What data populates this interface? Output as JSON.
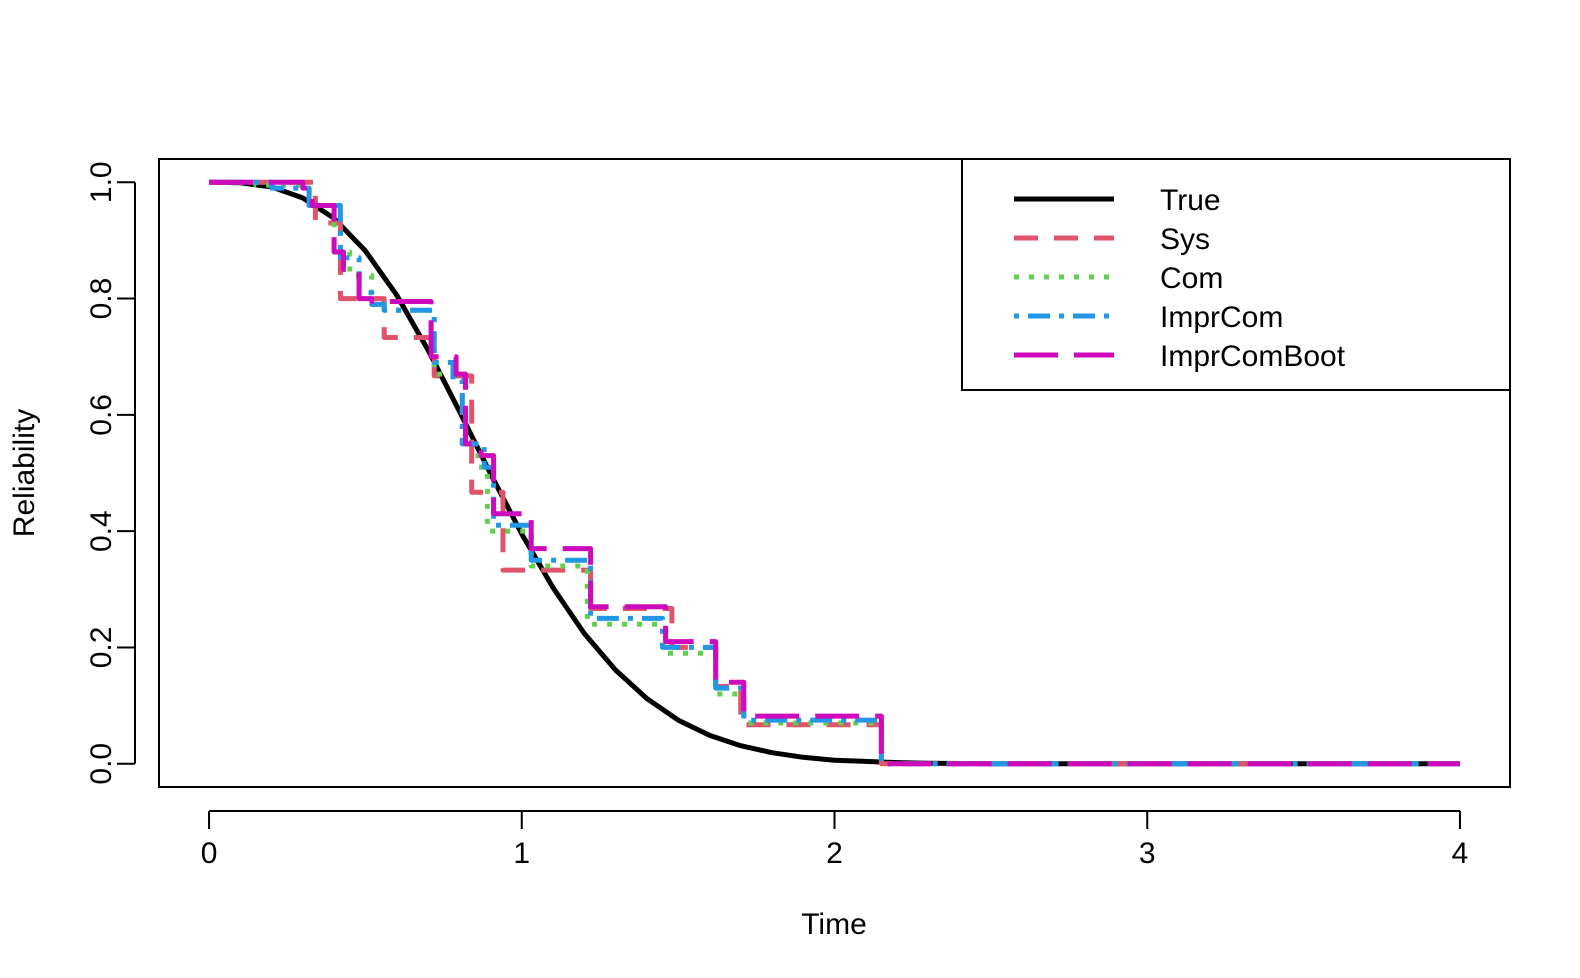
{
  "chart_data": {
    "type": "line",
    "title": "",
    "xlabel": "Time",
    "ylabel": "Reliability",
    "xlim": [
      -0.16,
      4.16
    ],
    "ylim": [
      -0.04,
      1.04
    ],
    "xticks": [
      "0",
      "1",
      "2",
      "3",
      "4"
    ],
    "yticks": [
      "0.0",
      "0.2",
      "0.4",
      "0.6",
      "0.8",
      "1.0"
    ],
    "legend_position": "top-right",
    "series": [
      {
        "name": "True",
        "color": "#000000",
        "style": "solid",
        "kind": "curve",
        "x": [
          0,
          0.1,
          0.2,
          0.3,
          0.4,
          0.5,
          0.6,
          0.7,
          0.8,
          0.9,
          1.0,
          1.1,
          1.2,
          1.3,
          1.4,
          1.5,
          1.6,
          1.7,
          1.8,
          1.9,
          2.0,
          2.1,
          2.2,
          2.3,
          2.5,
          2.8,
          3.0,
          3.5,
          4.0
        ],
        "y": [
          1.0,
          0.999,
          0.992,
          0.973,
          0.938,
          0.882,
          0.806,
          0.712,
          0.607,
          0.499,
          0.395,
          0.303,
          0.224,
          0.161,
          0.112,
          0.075,
          0.049,
          0.031,
          0.019,
          0.011,
          0.006,
          0.004,
          0.002,
          0.001,
          0.0,
          0.0,
          0.0,
          0.0,
          0.0
        ]
      },
      {
        "name": "Sys",
        "color": "#DF536B",
        "style": "dashed",
        "kind": "step",
        "x": [
          0,
          0.32,
          0.34,
          0.4,
          0.42,
          0.52,
          0.56,
          0.68,
          0.72,
          0.8,
          0.84,
          0.9,
          0.94,
          1.06,
          1.1,
          1.18,
          1.22,
          1.44,
          1.48,
          1.58,
          1.62,
          1.66,
          1.7,
          2.12,
          2.15,
          4.0
        ],
        "y": [
          1.0,
          1.0,
          0.93,
          0.93,
          0.8,
          0.8,
          0.733,
          0.733,
          0.667,
          0.667,
          0.467,
          0.467,
          0.333,
          0.333,
          0.333,
          0.333,
          0.267,
          0.267,
          0.2,
          0.2,
          0.133,
          0.133,
          0.067,
          0.067,
          0.0,
          0.0
        ]
      },
      {
        "name": "Com",
        "color": "#61D04F",
        "style": "dotted",
        "kind": "step",
        "x": [
          0,
          0.15,
          0.32,
          0.4,
          0.45,
          0.52,
          0.56,
          0.68,
          0.72,
          0.78,
          0.81,
          0.86,
          0.89,
          1.0,
          1.03,
          1.18,
          1.21,
          1.42,
          1.45,
          1.58,
          1.62,
          1.68,
          1.71,
          2.12,
          2.15,
          4.0
        ],
        "y": [
          1.0,
          0.995,
          0.96,
          0.88,
          0.84,
          0.79,
          0.78,
          0.78,
          0.67,
          0.66,
          0.55,
          0.51,
          0.4,
          0.4,
          0.34,
          0.34,
          0.24,
          0.24,
          0.19,
          0.19,
          0.12,
          0.12,
          0.07,
          0.07,
          0.0,
          0.0
        ]
      },
      {
        "name": "ImprCom",
        "color": "#2297E6",
        "style": "dotdash",
        "kind": "step",
        "x": [
          0,
          0.2,
          0.32,
          0.42,
          0.48,
          0.52,
          0.56,
          0.68,
          0.72,
          0.78,
          0.81,
          0.88,
          0.91,
          1.0,
          1.03,
          1.18,
          1.22,
          1.42,
          1.45,
          1.58,
          1.62,
          1.68,
          1.71,
          2.12,
          2.15,
          4.0
        ],
        "y": [
          1.0,
          0.99,
          0.96,
          0.87,
          0.81,
          0.79,
          0.78,
          0.78,
          0.69,
          0.66,
          0.55,
          0.51,
          0.41,
          0.41,
          0.35,
          0.35,
          0.25,
          0.25,
          0.2,
          0.2,
          0.13,
          0.13,
          0.075,
          0.075,
          0.0,
          0.0
        ]
      },
      {
        "name": "ImprComBoot",
        "color": "#CD0BBC",
        "style": "longdash",
        "kind": "step",
        "x": [
          0,
          0.3,
          0.33,
          0.4,
          0.43,
          0.48,
          0.52,
          0.68,
          0.71,
          0.79,
          0.82,
          0.87,
          0.91,
          1.0,
          1.03,
          1.18,
          1.22,
          1.43,
          1.46,
          1.58,
          1.62,
          1.68,
          1.71,
          2.12,
          2.15,
          4.0
        ],
        "y": [
          1.0,
          0.99,
          0.96,
          0.88,
          0.85,
          0.8,
          0.795,
          0.795,
          0.7,
          0.67,
          0.55,
          0.53,
          0.43,
          0.43,
          0.37,
          0.37,
          0.27,
          0.27,
          0.21,
          0.21,
          0.14,
          0.14,
          0.082,
          0.082,
          0.0,
          0.0
        ]
      }
    ]
  }
}
